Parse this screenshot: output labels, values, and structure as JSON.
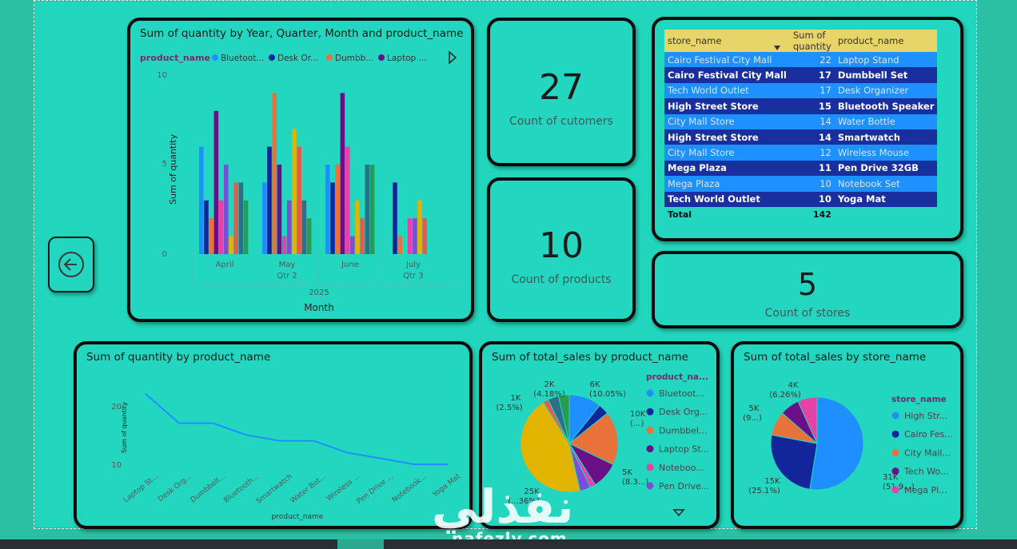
{
  "colors": {
    "bluetooth": "#1f8fff",
    "desk": "#13259a",
    "dumbbell": "#e8723a",
    "laptop": "#6a0f85",
    "notebook": "#e542a8",
    "pendrive": "#7a4fd6",
    "smartwatch": "#e0b400",
    "waterbottle": "#e85a4a",
    "wireless": "#2d6f86",
    "yoga": "#2a9c52",
    "pie_cairo": "#13259a"
  },
  "nav": {
    "icon": "back-arrow-icon"
  },
  "chart_qty_time": {
    "title": "Sum of quantity by Year, Quarter, Month and product_name",
    "legend_title": "product_name",
    "legend": [
      "Bluetoot...",
      "Desk Or...",
      "Dumbb...",
      "Laptop ..."
    ],
    "ticks": [
      "10",
      "5",
      "0"
    ],
    "months": [
      "April",
      "May",
      "June",
      "July"
    ],
    "quarters": [
      "Qtr 2",
      "Qtr 3"
    ],
    "year": "2025",
    "xlabel": "Month",
    "ylabel": "Sum of quantity"
  },
  "kpi_customers": {
    "value": "27",
    "label": "Count of cutomers"
  },
  "kpi_products": {
    "value": "10",
    "label": "Count of products"
  },
  "kpi_stores": {
    "value": "5",
    "label": "Count of stores"
  },
  "table": {
    "headers": [
      "store_name",
      "Sum of quantity",
      "product_name"
    ],
    "rows": [
      {
        "store": "Cairo Festival City Mall",
        "qty": "22",
        "product": "Laptop Stand"
      },
      {
        "store": "Cairo Festival City Mall",
        "qty": "17",
        "product": "Dumbbell Set"
      },
      {
        "store": "Tech World Outlet",
        "qty": "17",
        "product": "Desk Organizer"
      },
      {
        "store": "High Street Store",
        "qty": "15",
        "product": "Bluetooth Speaker"
      },
      {
        "store": "City Mall Store",
        "qty": "14",
        "product": "Water Bottle"
      },
      {
        "store": "High Street Store",
        "qty": "14",
        "product": "Smartwatch"
      },
      {
        "store": "City Mall Store",
        "qty": "12",
        "product": "Wireless Mouse"
      },
      {
        "store": "Mega Plaza",
        "qty": "11",
        "product": "Pen Drive 32GB"
      },
      {
        "store": "Mega Plaza",
        "qty": "10",
        "product": "Notebook Set"
      },
      {
        "store": "Tech World Outlet",
        "qty": "10",
        "product": "Yoga Mat"
      }
    ],
    "total_label": "Total",
    "total_value": "142"
  },
  "chart_qty_product": {
    "title": "Sum of quantity by product_name",
    "ylabel": "Sum of quantity",
    "xlabel": "product_name",
    "ticks": [
      "20",
      "10"
    ]
  },
  "chart_sales_product": {
    "title": "Sum of total_sales by product_name",
    "legend_title": "product_na...",
    "legend": [
      "Bluetoot...",
      "Desk Org...",
      "Dumbbel...",
      "Laptop St...",
      "Noteboo...",
      "Pen Drive..."
    ],
    "labels": [
      {
        "a": "2K",
        "b": "(4.18%)"
      },
      {
        "a": "6K",
        "b": "(10.05%)"
      },
      {
        "a": "1K",
        "b": "(2.5%)"
      },
      {
        "a": "10K",
        "b": "(...)"
      },
      {
        "a": "5K",
        "b": "(8.3...)"
      },
      {
        "a": "25K",
        "b": "(...36%)"
      }
    ]
  },
  "chart_sales_store": {
    "title": "Sum of total_sales by store_name",
    "legend_title": "store_name",
    "legend": [
      "High Str...",
      "Cairo Fes...",
      "City Mall...",
      "Tech Wo...",
      "Mega Pl..."
    ],
    "labels": [
      {
        "a": "4K",
        "b": "(6.26%)"
      },
      {
        "a": "5K",
        "b": "(9...)"
      },
      {
        "a": "15K",
        "b": "(25.1%)"
      },
      {
        "a": "31K",
        "b": "(51.9...)"
      }
    ]
  },
  "chart_data": [
    {
      "type": "bar",
      "title": "Sum of quantity by Year, Quarter, Month and product_name",
      "xlabel": "Month",
      "ylabel": "Sum of quantity",
      "ylim": [
        0,
        10
      ],
      "categories": [
        "April",
        "May",
        "June",
        "July"
      ],
      "series": [
        {
          "name": "Bluetooth Speaker",
          "values": [
            6,
            4,
            5,
            0
          ]
        },
        {
          "name": "Desk Organizer",
          "values": [
            3,
            6,
            4,
            4
          ]
        },
        {
          "name": "Dumbbell Set",
          "values": [
            2,
            9,
            5,
            1
          ]
        },
        {
          "name": "Laptop Stand",
          "values": [
            8,
            5,
            9,
            0
          ]
        },
        {
          "name": "Notebook Set",
          "values": [
            3,
            1,
            6,
            2
          ]
        },
        {
          "name": "Pen Drive 32GB",
          "values": [
            5,
            3,
            1,
            2
          ]
        },
        {
          "name": "Smartwatch",
          "values": [
            1,
            7,
            3,
            3
          ]
        },
        {
          "name": "Water Bottle",
          "values": [
            4,
            6,
            2,
            2
          ]
        },
        {
          "name": "Wireless Mouse",
          "values": [
            4,
            3,
            5,
            0
          ]
        },
        {
          "name": "Yoga Mat",
          "values": [
            3,
            2,
            5,
            0
          ]
        }
      ]
    },
    {
      "type": "line",
      "title": "Sum of quantity by product_name",
      "xlabel": "product_name",
      "ylabel": "Sum of quantity",
      "categories": [
        "Laptop St...",
        "Desk Org...",
        "Dumbbell...",
        "Bluetooth...",
        "Smartwatch",
        "Water Bot...",
        "Wireless ...",
        "Pen Drive ...",
        "Notebook...",
        "Yoga Mat"
      ],
      "values": [
        22,
        17,
        17,
        15,
        14,
        14,
        12,
        11,
        10,
        10
      ]
    },
    {
      "type": "pie",
      "title": "Sum of total_sales by product_name",
      "slices": [
        {
          "name": "Bluetooth",
          "value": 6,
          "pct": 10.05,
          "color_key": "bluetooth"
        },
        {
          "name": "Desk Organizer",
          "value": 2,
          "pct": 3.2,
          "color_key": "desk"
        },
        {
          "name": "Dumbbell",
          "value": 10,
          "pct": 16.8,
          "color_key": "dumbbell"
        },
        {
          "name": "Laptop Stand",
          "value": 5,
          "pct": 8.3,
          "color_key": "laptop"
        },
        {
          "name": "Notebook",
          "value": 1,
          "pct": 1.6,
          "color_key": "notebook"
        },
        {
          "name": "Pen Drive",
          "value": 2,
          "pct": 3.0,
          "color_key": "pendrive"
        },
        {
          "name": "Smartwatch",
          "value": 25,
          "pct": 42.36,
          "color_key": "smartwatch"
        },
        {
          "name": "Water Bottle",
          "value": 1,
          "pct": 2.5,
          "color_key": "waterbottle"
        },
        {
          "name": "Wireless Mouse",
          "value": 2,
          "pct": 4.18,
          "color_key": "wireless"
        },
        {
          "name": "Yoga Mat",
          "value": 2,
          "pct": 3.0,
          "color_key": "yoga"
        }
      ]
    },
    {
      "type": "pie",
      "title": "Sum of total_sales by store_name",
      "slices": [
        {
          "name": "High Street Store",
          "value": 31,
          "pct": 51.9,
          "color_key": "bluetooth"
        },
        {
          "name": "Cairo Festival City Mall",
          "value": 15,
          "pct": 25.1,
          "color_key": "pie_cairo"
        },
        {
          "name": "City Mall Store",
          "value": 5,
          "pct": 9.0,
          "color_key": "dumbbell"
        },
        {
          "name": "Tech World Outlet",
          "value": 4,
          "pct": 7.7,
          "color_key": "laptop"
        },
        {
          "name": "Mega Plaza",
          "value": 4,
          "pct": 6.26,
          "color_key": "notebook"
        }
      ]
    }
  ],
  "watermark": {
    "arabic": "نفذلي",
    "latin": "nafezly.com"
  }
}
